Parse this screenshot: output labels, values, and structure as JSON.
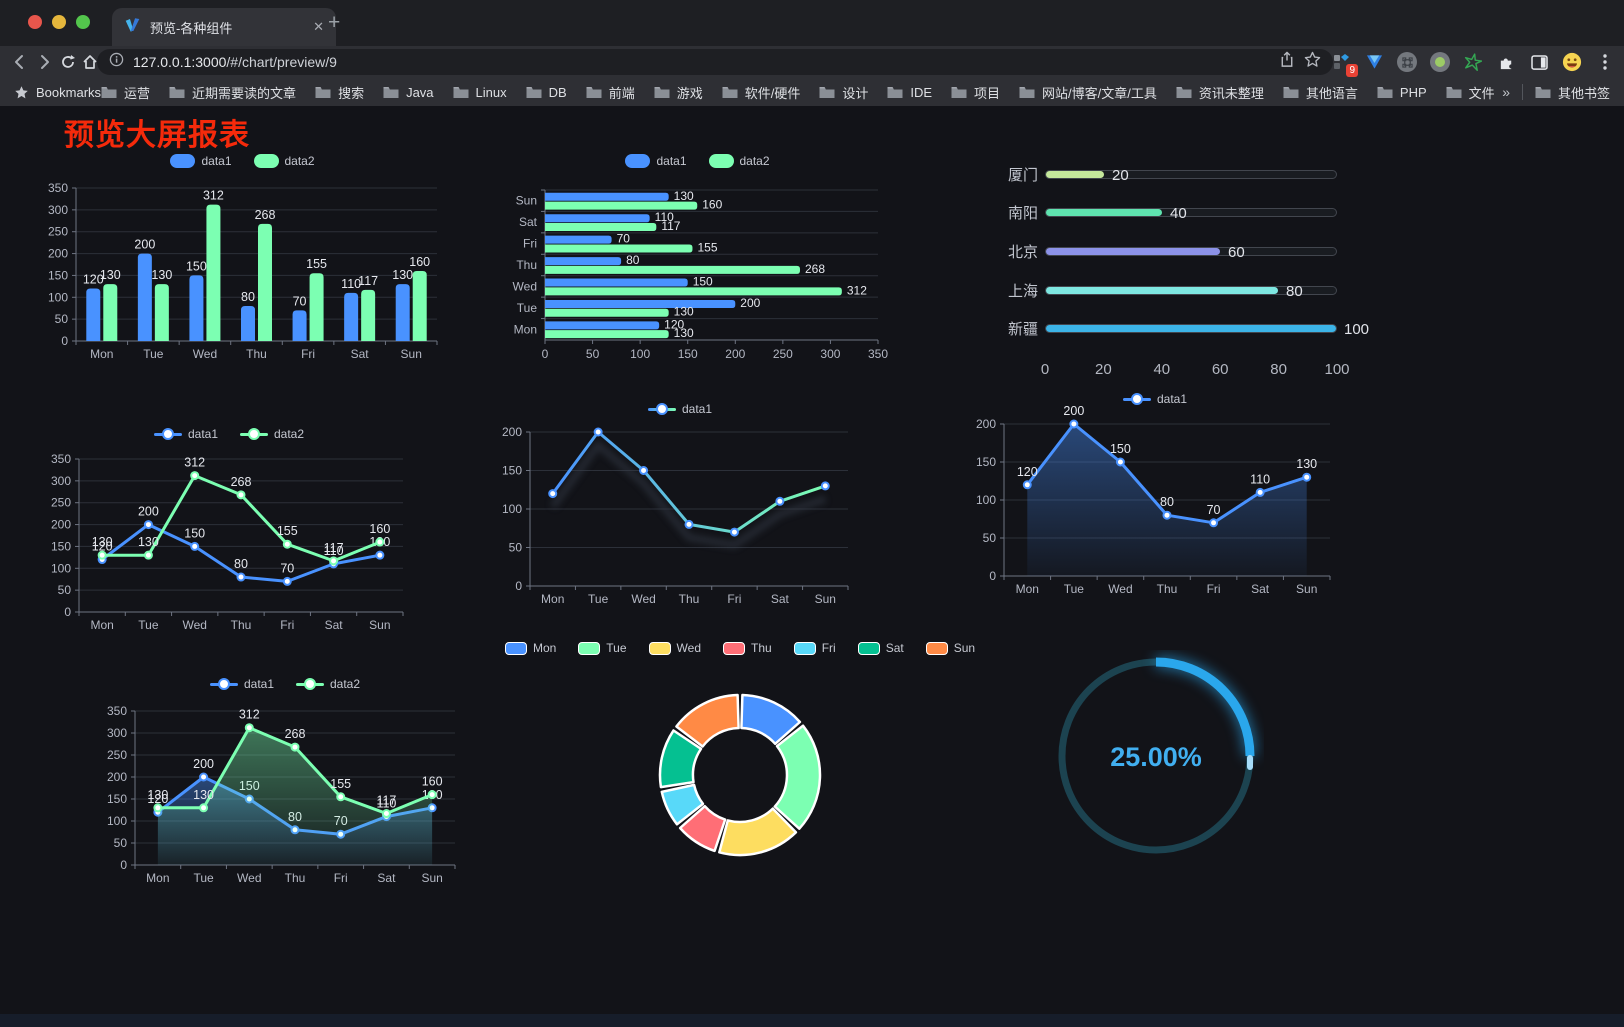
{
  "browser": {
    "tab_title": "预览-各种组件",
    "close_glyph": "✕",
    "new_tab_glyph": "+",
    "url_host": "127.0.0.1:3000",
    "url_path": "/#/chart/preview/9",
    "extension_badge": "9",
    "bookmarks_label": "Bookmarks",
    "bookmarks": [
      "运营",
      "近期需要读的文章",
      "搜索",
      "Java",
      "Linux",
      "DB",
      "前端",
      "游戏",
      "软件/硬件",
      "设计",
      "IDE",
      "项目",
      "网站/博客/文章/工具",
      "资讯未整理",
      "其他语言",
      "PHP",
      "文件服务器"
    ],
    "overflow_glyph": "»",
    "other_bookmarks": "其他书签"
  },
  "page": {
    "title": "预览大屏报表",
    "title_color": "#f52a0b"
  },
  "chart_data": [
    {
      "id": "bar-vertical",
      "type": "bar",
      "categories": [
        "Mon",
        "Tue",
        "Wed",
        "Thu",
        "Fri",
        "Sat",
        "Sun"
      ],
      "series": [
        {
          "name": "data1",
          "color": "#4992ff",
          "values": [
            120,
            200,
            150,
            80,
            70,
            110,
            130
          ]
        },
        {
          "name": "data2",
          "color": "#7cffb2",
          "values": [
            130,
            130,
            312,
            268,
            155,
            117,
            160
          ]
        }
      ],
      "ylim": [
        0,
        350
      ],
      "yticks": [
        0,
        50,
        100,
        150,
        200,
        250,
        300,
        350
      ],
      "legend_position": "top",
      "grid": true,
      "point_labels": true
    },
    {
      "id": "bar-horizontal",
      "type": "bar-horizontal",
      "categories": [
        "Mon",
        "Tue",
        "Wed",
        "Thu",
        "Fri",
        "Sat",
        "Sun"
      ],
      "series": [
        {
          "name": "data1",
          "color": "#4992ff",
          "values": [
            120,
            200,
            150,
            80,
            70,
            110,
            130
          ]
        },
        {
          "name": "data2",
          "color": "#7cffb2",
          "values": [
            130,
            130,
            312,
            268,
            155,
            117,
            160
          ]
        }
      ],
      "xlim": [
        0,
        350
      ],
      "xticks": [
        0,
        50,
        100,
        150,
        200,
        250,
        300,
        350
      ],
      "legend_position": "top",
      "point_labels": true
    },
    {
      "id": "city-progress",
      "type": "progress-bars",
      "max": 100,
      "axis_ticks": [
        0,
        20,
        40,
        60,
        80,
        100
      ],
      "rows": [
        {
          "label": "厦门",
          "value": 20,
          "color": "#c5e89c"
        },
        {
          "label": "南阳",
          "value": 40,
          "color": "#5fe3af"
        },
        {
          "label": "北京",
          "value": 60,
          "color": "#8c92e8"
        },
        {
          "label": "上海",
          "value": 80,
          "color": "#7ee7e1"
        },
        {
          "label": "新疆",
          "value": 100,
          "color": "#3cb4e7"
        }
      ]
    },
    {
      "id": "line-two",
      "type": "line",
      "categories": [
        "Mon",
        "Tue",
        "Wed",
        "Thu",
        "Fri",
        "Sat",
        "Sun"
      ],
      "series": [
        {
          "name": "data1",
          "color": "#4992ff",
          "values": [
            120,
            200,
            150,
            80,
            70,
            110,
            130
          ]
        },
        {
          "name": "data2",
          "color": "#7cffb2",
          "values": [
            130,
            130,
            312,
            268,
            155,
            117,
            160
          ]
        }
      ],
      "ylim": [
        0,
        350
      ],
      "yticks": [
        0,
        50,
        100,
        150,
        200,
        250,
        300,
        350
      ],
      "legend_position": "top",
      "point_labels": true
    },
    {
      "id": "line-gradient",
      "type": "line",
      "categories": [
        "Mon",
        "Tue",
        "Wed",
        "Thu",
        "Fri",
        "Sat",
        "Sun"
      ],
      "series": [
        {
          "name": "data1",
          "gradient": [
            "#4992ff",
            "#7cffb2"
          ],
          "values": [
            120,
            200,
            150,
            80,
            70,
            110,
            130
          ]
        }
      ],
      "ylim": [
        0,
        200
      ],
      "yticks": [
        0,
        50,
        100,
        150,
        200
      ],
      "legend_position": "top",
      "point_labels": false,
      "shadow": true
    },
    {
      "id": "area-blue",
      "type": "area",
      "categories": [
        "Mon",
        "Tue",
        "Wed",
        "Thu",
        "Fri",
        "Sat",
        "Sun"
      ],
      "series": [
        {
          "name": "data1",
          "color": "#4992ff",
          "values": [
            120,
            200,
            150,
            80,
            70,
            110,
            130
          ]
        }
      ],
      "ylim": [
        0,
        200
      ],
      "yticks": [
        0,
        50,
        100,
        150,
        200
      ],
      "legend_position": "top",
      "point_labels": true
    },
    {
      "id": "area-two",
      "type": "area",
      "categories": [
        "Mon",
        "Tue",
        "Wed",
        "Thu",
        "Fri",
        "Sat",
        "Sun"
      ],
      "series": [
        {
          "name": "data1",
          "color": "#4992ff",
          "values": [
            120,
            200,
            150,
            80,
            70,
            110,
            130
          ]
        },
        {
          "name": "data2",
          "color": "#7cffb2",
          "values": [
            130,
            130,
            312,
            268,
            155,
            117,
            160
          ]
        }
      ],
      "ylim": [
        0,
        350
      ],
      "yticks": [
        0,
        50,
        100,
        150,
        200,
        250,
        300,
        350
      ],
      "legend_position": "top",
      "point_labels": true
    },
    {
      "id": "donut",
      "type": "pie",
      "categories": [
        "Mon",
        "Tue",
        "Wed",
        "Thu",
        "Fri",
        "Sat",
        "Sun"
      ],
      "values": [
        120,
        200,
        150,
        80,
        70,
        110,
        130
      ],
      "colors": [
        "#4992ff",
        "#7cffb2",
        "#fddd60",
        "#ff6e76",
        "#58d9f9",
        "#05c091",
        "#ff8a45"
      ],
      "legend_position": "top"
    },
    {
      "id": "gauge",
      "type": "gauge",
      "value": 25,
      "label": "25.00%",
      "color": "#2aa7ec",
      "track_color": "#1c4350"
    }
  ]
}
